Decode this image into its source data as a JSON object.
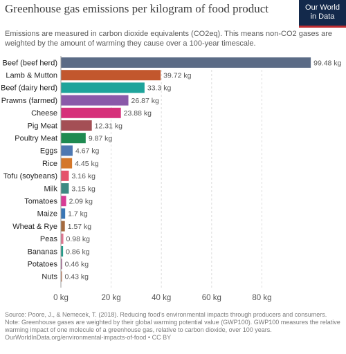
{
  "header": {
    "title": "Greenhouse gas emissions per kilogram of food product",
    "subtitle": "Emissions are measured in carbon dioxide equivalents (CO2eq). This means non-CO2 gases are weighted by the amount of warming they cause over a 100-year timescale.",
    "logo_line1": "Our World",
    "logo_line2": "in Data"
  },
  "chart_data": {
    "type": "bar",
    "orientation": "horizontal",
    "categories": [
      "Beef (beef herd)",
      "Lamb & Mutton",
      "Beef (dairy herd)",
      "Prawns (farmed)",
      "Cheese",
      "Pig Meat",
      "Poultry Meat",
      "Eggs",
      "Rice",
      "Tofu (soybeans)",
      "Milk",
      "Tomatoes",
      "Maize",
      "Wheat & Rye",
      "Peas",
      "Bananas",
      "Potatoes",
      "Nuts"
    ],
    "values": [
      99.48,
      39.72,
      33.3,
      26.87,
      23.88,
      12.31,
      9.87,
      4.67,
      4.45,
      3.16,
      3.15,
      2.09,
      1.7,
      1.57,
      0.98,
      0.86,
      0.46,
      0.43
    ],
    "value_labels": [
      "99.48 kg",
      "39.72 kg",
      "33.3 kg",
      "26.87 kg",
      "23.88 kg",
      "12.31 kg",
      "9.87 kg",
      "4.67 kg",
      "4.45 kg",
      "3.16 kg",
      "3.15 kg",
      "2.09 kg",
      "1.7 kg",
      "1.57 kg",
      "0.98 kg",
      "0.86 kg",
      "0.46 kg",
      "0.43 kg"
    ],
    "colors": [
      "#5b6b86",
      "#c2572d",
      "#1ea49b",
      "#8a59a9",
      "#d6307a",
      "#a44f55",
      "#1e8a51",
      "#4e78b1",
      "#d4772a",
      "#e5536b",
      "#3e8a83",
      "#d83b95",
      "#3a76b5",
      "#a56a3e",
      "#e07691",
      "#239c8b",
      "#a45c8d",
      "#c07a56"
    ],
    "xlim": [
      0,
      100
    ],
    "xticks": [
      0,
      20,
      40,
      60,
      80
    ],
    "xtick_labels": [
      "0 kg",
      "20 kg",
      "40 kg",
      "60 kg",
      "80 kg"
    ],
    "grid": true
  },
  "footer": {
    "source": "Source: Poore, J., & Nemecek, T. (2018). Reducing food's environmental impacts through producers and consumers.",
    "note": "Note: Greenhouse gases are weighted by their global warming potential value (GWP100). GWP100 measures the relative warming impact of one molecule of a greenhouse gas, relative to carbon dioxide, over 100 years.",
    "credit": "OurWorldInData.org/environmental-impacts-of-food • CC BY"
  }
}
